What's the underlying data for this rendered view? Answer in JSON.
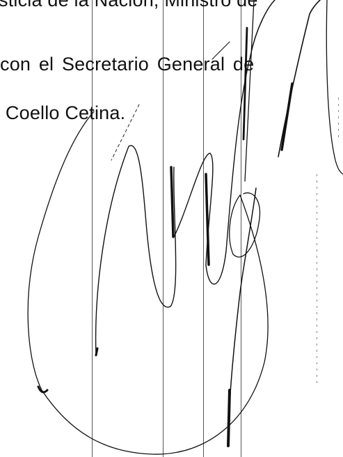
{
  "document": {
    "lines": [
      "sticia de la Nación, Ministro de",
      "con el Secretario General de",
      "l Coello Cetina."
    ]
  },
  "signature": {
    "icon": "handwritten-signature",
    "ink_color": "#111111"
  }
}
